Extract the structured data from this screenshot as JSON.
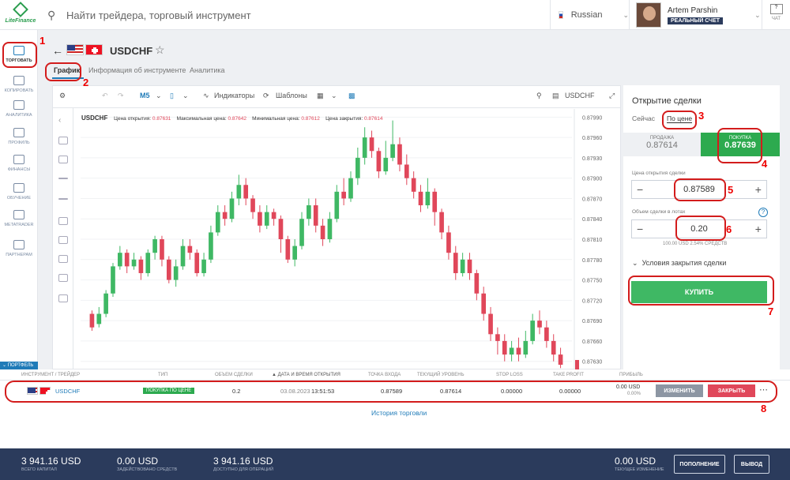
{
  "topbar": {
    "logo_text": "LiteFinance",
    "search_placeholder": "Найти трейдера, торговый инструмент",
    "language": "Russian",
    "user_name": "Artem Parshin",
    "account_type": "РЕАЛЬНЫЙ СЧЕТ",
    "chat_label": "ЧАТ",
    "chat_count": "?"
  },
  "sidebar": {
    "items": [
      {
        "label": "ТОРГОВАТЬ",
        "icon": "chart-up-icon"
      },
      {
        "label": "КОПИРОВАТЬ",
        "icon": "users-icon"
      },
      {
        "label": "АНАЛИТИКА",
        "icon": "analytics-icon"
      },
      {
        "label": "ПРОФИЛЬ",
        "icon": "profile-icon"
      },
      {
        "label": "ФИНАНСЫ",
        "icon": "dollar-icon"
      },
      {
        "label": "ОБУЧЕНИЕ",
        "icon": "graduation-icon"
      },
      {
        "label": "METATRADER",
        "icon": "monitor-icon"
      },
      {
        "label": "ПАРТНЕРАМ",
        "icon": "handshake-icon"
      }
    ],
    "portfolio_label": "ПОРТФЕЛЬ"
  },
  "instrument": {
    "symbol": "USDCHF",
    "tabs": [
      "График",
      "Информация об инструменте",
      "Аналитика"
    ]
  },
  "chart_toolbar": {
    "interval": "M5",
    "indicators": "Индикаторы",
    "templates": "Шаблоны",
    "symbol": "USDCHF"
  },
  "chart_info": {
    "symbol": "USDCHF",
    "open_label": "Цена открытия:",
    "open_value": "0.87631",
    "max_label": "Максимальная цена:",
    "max_value": "0.87642",
    "min_label": "Минимальная цена:",
    "min_value": "0.87612",
    "close_label": "Цена закрытия:",
    "close_value": "0.87614"
  },
  "chart_data": {
    "type": "candlestick",
    "y_ticks": [
      "0.87990",
      "0.87960",
      "0.87930",
      "0.87900",
      "0.87870",
      "0.87840",
      "0.87810",
      "0.87780",
      "0.87750",
      "0.87720",
      "0.87690",
      "0.87660",
      "0.87630"
    ],
    "ylim": [
      0.87618,
      0.88002
    ],
    "candles": [
      [
        0.877,
        0.8768,
        0.87705,
        0.87675
      ],
      [
        0.87685,
        0.877,
        0.8771,
        0.8768
      ],
      [
        0.877,
        0.8773,
        0.87735,
        0.87695
      ],
      [
        0.8773,
        0.8777,
        0.87775,
        0.87725
      ],
      [
        0.8777,
        0.8779,
        0.878,
        0.87765
      ],
      [
        0.8779,
        0.8777,
        0.87795,
        0.8776
      ],
      [
        0.8777,
        0.8778,
        0.8779,
        0.87765
      ],
      [
        0.8778,
        0.8776,
        0.87785,
        0.8775
      ],
      [
        0.8776,
        0.8779,
        0.87795,
        0.87755
      ],
      [
        0.8779,
        0.8781,
        0.87815,
        0.8778
      ],
      [
        0.8781,
        0.8778,
        0.87815,
        0.8777
      ],
      [
        0.8778,
        0.8775,
        0.87785,
        0.87745
      ],
      [
        0.8775,
        0.8777,
        0.8778,
        0.8774
      ],
      [
        0.8777,
        0.878,
        0.8781,
        0.87765
      ],
      [
        0.878,
        0.8779,
        0.8781,
        0.8778
      ],
      [
        0.8779,
        0.8776,
        0.87795,
        0.87755
      ],
      [
        0.8776,
        0.8778,
        0.8779,
        0.87755
      ],
      [
        0.8778,
        0.8782,
        0.8783,
        0.87775
      ],
      [
        0.8782,
        0.8785,
        0.8786,
        0.87815
      ],
      [
        0.8785,
        0.8784,
        0.8786,
        0.8783
      ],
      [
        0.8784,
        0.8787,
        0.8788,
        0.87835
      ],
      [
        0.8787,
        0.8789,
        0.87905,
        0.8786
      ],
      [
        0.8789,
        0.8787,
        0.879,
        0.8786
      ],
      [
        0.8787,
        0.8785,
        0.87875,
        0.8784
      ],
      [
        0.8785,
        0.8783,
        0.8786,
        0.8782
      ],
      [
        0.8783,
        0.8785,
        0.8786,
        0.87825
      ],
      [
        0.8785,
        0.8784,
        0.87855,
        0.8783
      ],
      [
        0.8784,
        0.8781,
        0.87845,
        0.8779
      ],
      [
        0.8781,
        0.8778,
        0.87815,
        0.87775
      ],
      [
        0.8778,
        0.878,
        0.8781,
        0.8777
      ],
      [
        0.878,
        0.8784,
        0.8785,
        0.87795
      ],
      [
        0.8784,
        0.8786,
        0.8787,
        0.8783
      ],
      [
        0.8786,
        0.8783,
        0.8787,
        0.8782
      ],
      [
        0.8783,
        0.8781,
        0.8784,
        0.878
      ],
      [
        0.8781,
        0.8784,
        0.8785,
        0.87805
      ],
      [
        0.8784,
        0.8788,
        0.8789,
        0.87835
      ],
      [
        0.8788,
        0.8787,
        0.879,
        0.8786
      ],
      [
        0.8787,
        0.879,
        0.8791,
        0.87865
      ],
      [
        0.879,
        0.8793,
        0.87945,
        0.8789
      ],
      [
        0.8793,
        0.8796,
        0.87975,
        0.8792
      ],
      [
        0.8796,
        0.8794,
        0.8797,
        0.8793
      ],
      [
        0.8794,
        0.8791,
        0.87945,
        0.879
      ],
      [
        0.8791,
        0.8793,
        0.87955,
        0.87905
      ],
      [
        0.8793,
        0.8795,
        0.87985,
        0.87925
      ],
      [
        0.8795,
        0.8792,
        0.8796,
        0.8791
      ],
      [
        0.8792,
        0.879,
        0.87935,
        0.8789
      ],
      [
        0.879,
        0.8788,
        0.8791,
        0.8787
      ],
      [
        0.8788,
        0.8786,
        0.8789,
        0.8785
      ],
      [
        0.8786,
        0.8788,
        0.879,
        0.87855
      ],
      [
        0.8788,
        0.8785,
        0.87885,
        0.8783
      ],
      [
        0.8785,
        0.8782,
        0.87855,
        0.8781
      ],
      [
        0.8782,
        0.8779,
        0.8783,
        0.8778
      ],
      [
        0.8779,
        0.8776,
        0.878,
        0.8775
      ],
      [
        0.8776,
        0.8778,
        0.8779,
        0.87755
      ],
      [
        0.8778,
        0.8776,
        0.8779,
        0.8775
      ],
      [
        0.8776,
        0.8773,
        0.87765,
        0.8772
      ],
      [
        0.8773,
        0.877,
        0.8774,
        0.8769
      ],
      [
        0.877,
        0.8767,
        0.8771,
        0.8766
      ],
      [
        0.8767,
        0.8766,
        0.8768,
        0.8764
      ],
      [
        0.8766,
        0.8764,
        0.8767,
        0.8763
      ],
      [
        0.8764,
        0.8765,
        0.8766,
        0.8763
      ],
      [
        0.8765,
        0.8764,
        0.87665,
        0.8763
      ],
      [
        0.8764,
        0.8766,
        0.87675,
        0.87635
      ],
      [
        0.8766,
        0.8769,
        0.877,
        0.87655
      ],
      [
        0.8769,
        0.8768,
        0.87705,
        0.8767
      ],
      [
        0.8768,
        0.8766,
        0.8769,
        0.8765
      ],
      [
        0.8766,
        0.8764,
        0.8767,
        0.8763
      ],
      [
        0.8764,
        0.87625,
        0.8765,
        0.8762
      ]
    ]
  },
  "order": {
    "title": "Открытие сделки",
    "mode_now": "Сейчас",
    "mode_price": "По цене",
    "sell_label": "ПРОДАЖА",
    "sell_price": "0.87614",
    "buy_label": "ПОКУПКА",
    "buy_price": "0.87639",
    "open_price_label": "Цена открытия сделки",
    "open_price": "0.87589",
    "volume_label": "Объем сделки в лотах",
    "volume": "0.20",
    "volume_note": "100.00 USD   2.54% СРЕДСТВ",
    "close_conditions": "Условия закрытия сделки",
    "buy_button": "КУПИТЬ"
  },
  "portfolio": {
    "headers": [
      "ИНСТРУМЕНТ / ТРЕЙДЕР",
      "ТИП",
      "ОБЪЕМ СДЕЛКИ",
      "ДАТА И ВРЕМЯ ОТКРЫТИЯ",
      "ТОЧКА ВХОДА",
      "ТЕКУЩИЙ УРОВЕНЬ",
      "STOP LOSS",
      "TAKE PROFIT",
      "ПРИБЫЛЬ"
    ],
    "row": {
      "symbol": "USDCHF",
      "type": "ПОКУПКА ПО ЦЕНЕ",
      "volume": "0.2",
      "date": "03.08.2023",
      "time": "13:51:53",
      "entry": "0.87589",
      "current": "0.87614",
      "stop_loss": "0.00000",
      "take_profit": "0.00000",
      "profit": "0.00 USD",
      "profit_pct": "0.00%",
      "edit_label": "ИЗМЕНИТЬ",
      "close_label": "ЗАКРЫТЬ"
    },
    "history_link": "История торговли"
  },
  "footer": {
    "capital_value": "3 941.16 USD",
    "capital_label": "ВСЕГО КАПИТАЛ",
    "used_value": "0.00 USD",
    "used_label": "ЗАДЕЙСТВОВАНО СРЕДСТВ",
    "available_value": "3 941.16 USD",
    "available_label": "ДОСТУПНО ДЛЯ ОПЕРАЦИЙ",
    "change_value": "0.00 USD",
    "change_label": "ТЕКУЩЕЕ ИЗМЕНЕНИЕ",
    "deposit_button": "ПОПОЛНЕНИЕ",
    "withdraw_button": "ВЫВОД"
  },
  "annotations": [
    "1",
    "2",
    "3",
    "4",
    "5",
    "6",
    "7",
    "8"
  ]
}
